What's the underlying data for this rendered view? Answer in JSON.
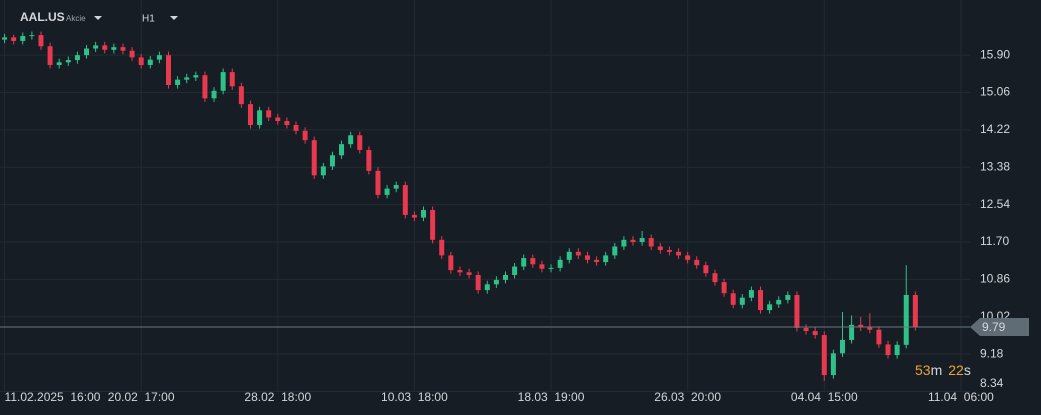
{
  "chart_data": {
    "type": "candlestick",
    "symbol": "AAL.US",
    "asset_class": "Akcie",
    "timeframe": "H1",
    "up_color": "#2ec28a",
    "down_color": "#e8394f",
    "grid": true,
    "ylim": [
      8.33,
      17.14
    ],
    "yticks": [
      {
        "value": 15.9,
        "label": "15.90"
      },
      15.06,
      14.22,
      13.38,
      12.54,
      {
        "value": 11.7,
        "label": "11.70"
      },
      10.86,
      10.02,
      9.18,
      8.34
    ],
    "xlim": [
      -0.5,
      106
    ],
    "xticks": [
      {
        "value": 0,
        "label": "11.02.2025  16:00"
      },
      {
        "value": 15,
        "label": "20.02  17:00"
      },
      {
        "value": 30,
        "label": "28.02  18:00"
      },
      {
        "value": 45,
        "label": "10.03  18:00"
      },
      {
        "value": 60,
        "label": "18.03  19:00"
      },
      {
        "value": 75,
        "label": "26.03  20:00"
      },
      {
        "value": 90,
        "label": "04.04  15:00"
      },
      {
        "value": 105,
        "label": "11.04  06:00"
      }
    ],
    "last_price": 9.79,
    "countdown": {
      "minutes": "53",
      "minutes_unit": "m",
      "seconds": "22",
      "seconds_unit": "s"
    },
    "candles": [
      [
        16.25,
        16.38,
        16.17,
        16.3
      ],
      [
        16.3,
        16.36,
        16.14,
        16.22
      ],
      [
        16.22,
        16.41,
        16.14,
        16.33
      ],
      [
        16.33,
        16.43,
        16.25,
        16.35
      ],
      [
        16.35,
        16.43,
        16.02,
        16.1
      ],
      [
        16.1,
        16.18,
        15.6,
        15.68
      ],
      [
        15.68,
        15.82,
        15.6,
        15.74
      ],
      [
        15.74,
        15.87,
        15.66,
        15.79
      ],
      [
        15.79,
        15.98,
        15.71,
        15.9
      ],
      [
        15.9,
        16.13,
        15.82,
        16.05
      ],
      [
        16.05,
        16.2,
        15.97,
        16.12
      ],
      [
        16.12,
        16.2,
        15.94,
        16.02
      ],
      [
        16.02,
        16.16,
        15.94,
        16.08
      ],
      [
        16.08,
        16.16,
        15.92,
        16.0
      ],
      [
        16.0,
        16.08,
        15.77,
        15.85
      ],
      [
        15.85,
        15.93,
        15.6,
        15.68
      ],
      [
        15.68,
        15.88,
        15.6,
        15.8
      ],
      [
        15.8,
        15.98,
        15.72,
        15.9
      ],
      [
        15.9,
        15.98,
        15.15,
        15.23
      ],
      [
        15.23,
        15.43,
        15.15,
        15.35
      ],
      [
        15.35,
        15.48,
        15.27,
        15.4
      ],
      [
        15.4,
        15.53,
        15.32,
        15.45
      ],
      [
        15.45,
        15.53,
        14.85,
        14.93
      ],
      [
        14.93,
        15.18,
        14.85,
        15.1
      ],
      [
        15.1,
        15.6,
        15.02,
        15.52
      ],
      [
        15.52,
        15.6,
        15.12,
        15.2
      ],
      [
        15.2,
        15.28,
        14.72,
        14.8
      ],
      [
        14.8,
        14.88,
        14.25,
        14.33
      ],
      [
        14.33,
        14.74,
        14.25,
        14.66
      ],
      [
        14.66,
        14.74,
        14.42,
        14.5
      ],
      [
        14.5,
        14.58,
        14.34,
        14.42
      ],
      [
        14.42,
        14.5,
        14.25,
        14.33
      ],
      [
        14.33,
        14.41,
        14.12,
        14.2
      ],
      [
        14.2,
        14.28,
        13.91,
        13.99
      ],
      [
        13.99,
        14.07,
        13.12,
        13.2
      ],
      [
        13.2,
        13.48,
        13.12,
        13.4
      ],
      [
        13.4,
        13.73,
        13.32,
        13.65
      ],
      [
        13.65,
        13.98,
        13.57,
        13.9
      ],
      [
        13.9,
        14.18,
        13.82,
        14.1
      ],
      [
        14.1,
        14.18,
        13.69,
        13.77
      ],
      [
        13.77,
        13.85,
        13.22,
        13.3
      ],
      [
        13.3,
        13.38,
        12.68,
        12.76
      ],
      [
        12.76,
        12.98,
        12.68,
        12.9
      ],
      [
        12.9,
        13.06,
        12.82,
        12.98
      ],
      [
        12.98,
        13.06,
        12.23,
        12.31
      ],
      [
        12.31,
        12.39,
        12.17,
        12.25
      ],
      [
        12.25,
        12.5,
        12.17,
        12.42
      ],
      [
        12.42,
        12.5,
        11.67,
        11.75
      ],
      [
        11.75,
        11.83,
        11.32,
        11.4
      ],
      [
        11.4,
        11.48,
        10.99,
        11.07
      ],
      [
        11.07,
        11.15,
        10.94,
        11.02
      ],
      [
        11.02,
        11.1,
        10.88,
        10.96
      ],
      [
        10.96,
        11.04,
        10.54,
        10.62
      ],
      [
        10.62,
        10.83,
        10.54,
        10.75
      ],
      [
        10.75,
        10.93,
        10.67,
        10.85
      ],
      [
        10.85,
        11.04,
        10.77,
        10.96
      ],
      [
        10.96,
        11.23,
        10.88,
        11.15
      ],
      [
        11.15,
        11.42,
        11.07,
        11.34
      ],
      [
        11.34,
        11.42,
        11.12,
        11.2
      ],
      [
        11.2,
        11.28,
        11.02,
        11.1
      ],
      [
        11.1,
        11.2,
        11.02,
        11.12
      ],
      [
        11.12,
        11.38,
        11.04,
        11.3
      ],
      [
        11.3,
        11.56,
        11.22,
        11.48
      ],
      [
        11.48,
        11.56,
        11.32,
        11.4
      ],
      [
        11.4,
        11.48,
        11.22,
        11.3
      ],
      [
        11.3,
        11.38,
        11.17,
        11.25
      ],
      [
        11.25,
        11.48,
        11.17,
        11.4
      ],
      [
        11.4,
        11.68,
        11.32,
        11.6
      ],
      [
        11.6,
        11.83,
        11.52,
        11.75
      ],
      [
        11.75,
        11.83,
        11.62,
        11.7
      ],
      [
        11.7,
        11.95,
        11.62,
        11.79
      ],
      [
        11.79,
        11.87,
        11.52,
        11.6
      ],
      [
        11.6,
        11.68,
        11.44,
        11.52
      ],
      [
        11.52,
        11.6,
        11.4,
        11.48
      ],
      [
        11.48,
        11.56,
        11.32,
        11.4
      ],
      [
        11.4,
        11.48,
        11.22,
        11.3
      ],
      [
        11.3,
        11.38,
        11.1,
        11.18
      ],
      [
        11.18,
        11.26,
        10.92,
        11.0
      ],
      [
        11.0,
        11.08,
        10.72,
        10.8
      ],
      [
        10.8,
        10.88,
        10.47,
        10.55
      ],
      [
        10.55,
        10.63,
        10.21,
        10.29
      ],
      [
        10.29,
        10.53,
        10.21,
        10.45
      ],
      [
        10.45,
        10.7,
        10.37,
        10.62
      ],
      [
        10.62,
        10.7,
        10.09,
        10.17
      ],
      [
        10.17,
        10.38,
        10.09,
        10.3
      ],
      [
        10.3,
        10.48,
        10.22,
        10.4
      ],
      [
        10.4,
        10.59,
        10.32,
        10.51
      ],
      [
        10.51,
        10.59,
        9.69,
        9.77
      ],
      [
        9.77,
        9.85,
        9.62,
        9.7
      ],
      [
        9.7,
        9.78,
        9.53,
        9.61
      ],
      [
        9.61,
        9.69,
        8.58,
        8.71
      ],
      [
        8.71,
        9.28,
        8.63,
        9.2
      ],
      [
        9.2,
        10.13,
        9.12,
        9.5
      ],
      [
        9.5,
        10.05,
        9.42,
        9.84
      ],
      [
        9.84,
        10.02,
        9.7,
        9.78
      ],
      [
        9.78,
        10.1,
        9.65,
        9.73
      ],
      [
        9.73,
        9.81,
        9.32,
        9.4
      ],
      [
        9.4,
        9.48,
        9.08,
        9.16
      ],
      [
        9.16,
        9.47,
        9.08,
        9.39
      ],
      [
        9.39,
        11.18,
        9.31,
        10.51
      ],
      [
        10.51,
        10.59,
        9.71,
        9.79
      ]
    ]
  }
}
